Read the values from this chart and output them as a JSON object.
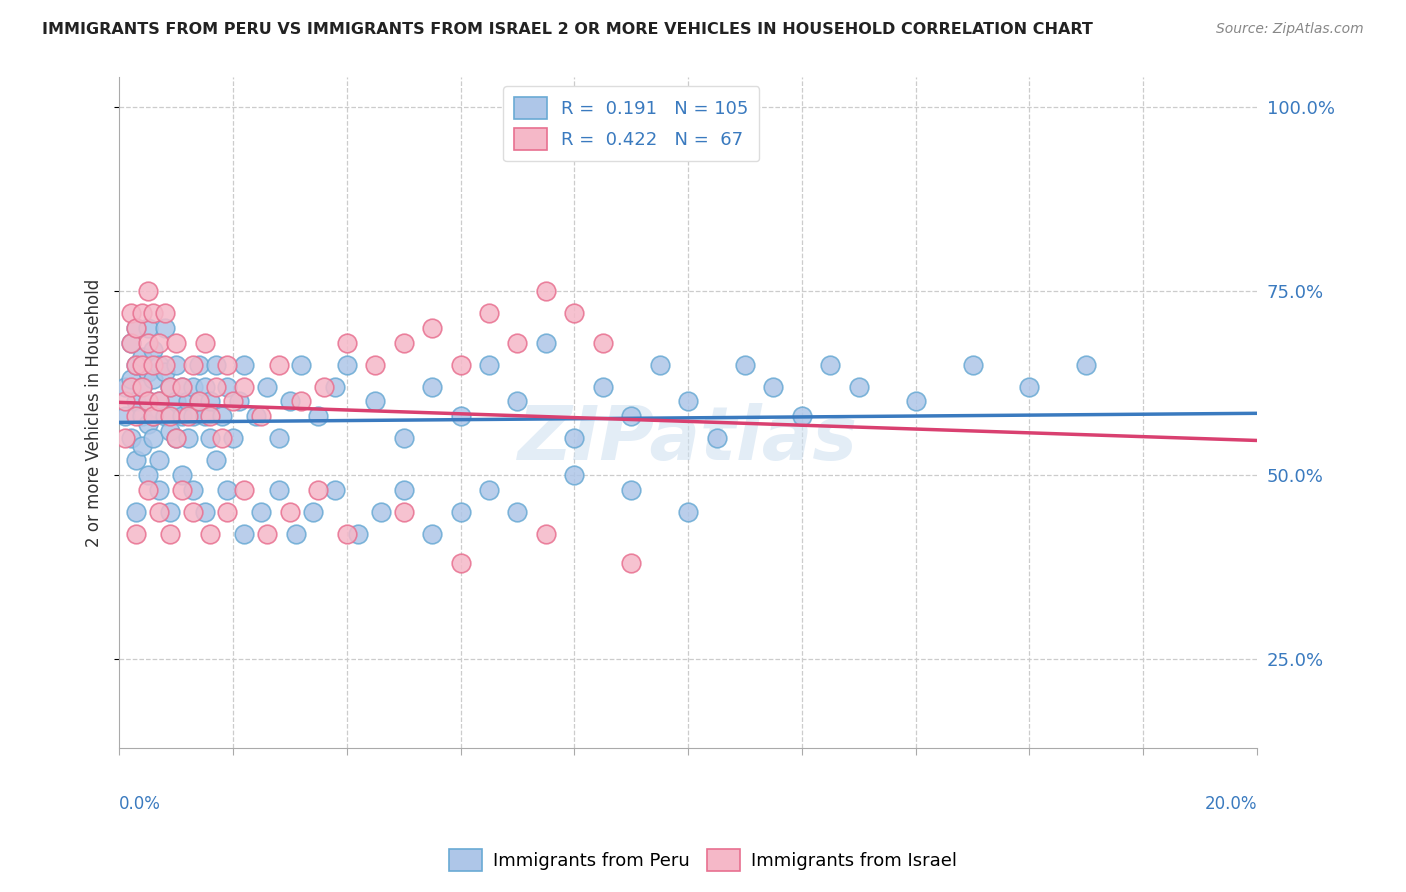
{
  "title": "IMMIGRANTS FROM PERU VS IMMIGRANTS FROM ISRAEL 2 OR MORE VEHICLES IN HOUSEHOLD CORRELATION CHART",
  "source": "Source: ZipAtlas.com",
  "ylabel": "2 or more Vehicles in Household",
  "ytick_labels": [
    "25.0%",
    "50.0%",
    "75.0%",
    "100.0%"
  ],
  "ytick_values": [
    0.25,
    0.5,
    0.75,
    1.0
  ],
  "xmin": 0.0,
  "xmax": 0.2,
  "ymin": 0.13,
  "ymax": 1.04,
  "r_peru": 0.191,
  "n_peru": 105,
  "r_israel": 0.422,
  "n_israel": 67,
  "color_peru_fill": "#aec6e8",
  "color_peru_edge": "#6aaad4",
  "color_israel_fill": "#f5b8c8",
  "color_israel_edge": "#e87090",
  "line_color_peru": "#3a7abf",
  "line_color_israel": "#d94070",
  "watermark": "ZIPatlas",
  "legend_peru": "Immigrants from Peru",
  "legend_israel": "Immigrants from Israel",
  "peru_x": [
    0.001,
    0.001,
    0.002,
    0.002,
    0.002,
    0.003,
    0.003,
    0.003,
    0.003,
    0.004,
    0.004,
    0.004,
    0.004,
    0.005,
    0.005,
    0.005,
    0.005,
    0.006,
    0.006,
    0.006,
    0.006,
    0.007,
    0.007,
    0.007,
    0.008,
    0.008,
    0.008,
    0.009,
    0.009,
    0.01,
    0.01,
    0.01,
    0.011,
    0.011,
    0.012,
    0.012,
    0.013,
    0.013,
    0.014,
    0.014,
    0.015,
    0.015,
    0.016,
    0.016,
    0.017,
    0.018,
    0.019,
    0.02,
    0.021,
    0.022,
    0.024,
    0.026,
    0.028,
    0.03,
    0.032,
    0.035,
    0.038,
    0.04,
    0.045,
    0.05,
    0.055,
    0.06,
    0.065,
    0.07,
    0.075,
    0.08,
    0.085,
    0.09,
    0.095,
    0.1,
    0.105,
    0.11,
    0.115,
    0.12,
    0.125,
    0.13,
    0.14,
    0.15,
    0.16,
    0.17,
    0.003,
    0.005,
    0.007,
    0.009,
    0.011,
    0.013,
    0.015,
    0.017,
    0.019,
    0.022,
    0.025,
    0.028,
    0.031,
    0.034,
    0.038,
    0.042,
    0.046,
    0.05,
    0.055,
    0.06,
    0.065,
    0.07,
    0.08,
    0.09,
    0.1
  ],
  "peru_y": [
    0.58,
    0.62,
    0.55,
    0.63,
    0.68,
    0.52,
    0.6,
    0.65,
    0.7,
    0.58,
    0.62,
    0.54,
    0.66,
    0.6,
    0.57,
    0.64,
    0.7,
    0.55,
    0.63,
    0.58,
    0.67,
    0.6,
    0.52,
    0.65,
    0.58,
    0.64,
    0.7,
    0.56,
    0.62,
    0.6,
    0.55,
    0.65,
    0.58,
    0.62,
    0.55,
    0.6,
    0.62,
    0.58,
    0.65,
    0.6,
    0.58,
    0.62,
    0.55,
    0.6,
    0.65,
    0.58,
    0.62,
    0.55,
    0.6,
    0.65,
    0.58,
    0.62,
    0.55,
    0.6,
    0.65,
    0.58,
    0.62,
    0.65,
    0.6,
    0.55,
    0.62,
    0.58,
    0.65,
    0.6,
    0.68,
    0.55,
    0.62,
    0.58,
    0.65,
    0.6,
    0.55,
    0.65,
    0.62,
    0.58,
    0.65,
    0.62,
    0.6,
    0.65,
    0.62,
    0.65,
    0.45,
    0.5,
    0.48,
    0.45,
    0.5,
    0.48,
    0.45,
    0.52,
    0.48,
    0.42,
    0.45,
    0.48,
    0.42,
    0.45,
    0.48,
    0.42,
    0.45,
    0.48,
    0.42,
    0.45,
    0.48,
    0.45,
    0.5,
    0.48,
    0.45
  ],
  "israel_x": [
    0.001,
    0.001,
    0.002,
    0.002,
    0.002,
    0.003,
    0.003,
    0.003,
    0.004,
    0.004,
    0.004,
    0.005,
    0.005,
    0.005,
    0.006,
    0.006,
    0.006,
    0.007,
    0.007,
    0.008,
    0.008,
    0.009,
    0.009,
    0.01,
    0.01,
    0.011,
    0.012,
    0.013,
    0.014,
    0.015,
    0.016,
    0.017,
    0.018,
    0.019,
    0.02,
    0.022,
    0.025,
    0.028,
    0.032,
    0.036,
    0.04,
    0.045,
    0.05,
    0.055,
    0.06,
    0.065,
    0.07,
    0.075,
    0.08,
    0.085,
    0.003,
    0.005,
    0.007,
    0.009,
    0.011,
    0.013,
    0.016,
    0.019,
    0.022,
    0.026,
    0.03,
    0.035,
    0.04,
    0.05,
    0.06,
    0.075,
    0.09
  ],
  "israel_y": [
    0.6,
    0.55,
    0.68,
    0.62,
    0.72,
    0.65,
    0.58,
    0.7,
    0.62,
    0.72,
    0.65,
    0.6,
    0.68,
    0.75,
    0.58,
    0.65,
    0.72,
    0.6,
    0.68,
    0.65,
    0.72,
    0.58,
    0.62,
    0.68,
    0.55,
    0.62,
    0.58,
    0.65,
    0.6,
    0.68,
    0.58,
    0.62,
    0.55,
    0.65,
    0.6,
    0.62,
    0.58,
    0.65,
    0.6,
    0.62,
    0.68,
    0.65,
    0.68,
    0.7,
    0.65,
    0.72,
    0.68,
    0.75,
    0.72,
    0.68,
    0.42,
    0.48,
    0.45,
    0.42,
    0.48,
    0.45,
    0.42,
    0.45,
    0.48,
    0.42,
    0.45,
    0.48,
    0.42,
    0.45,
    0.38,
    0.42,
    0.38
  ]
}
